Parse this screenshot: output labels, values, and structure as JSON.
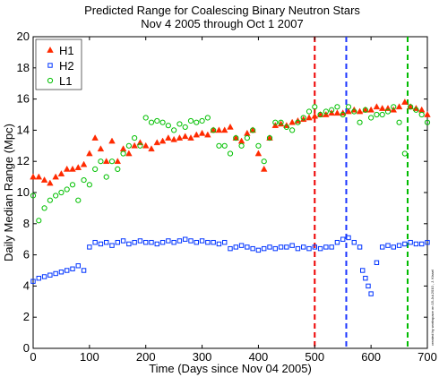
{
  "chart_data": {
    "type": "scatter",
    "title": "Predicted Range for Coalescing Binary Neutron Stars",
    "subtitle": "Nov 4 2005 through Oct 1 2007",
    "xlabel": "Time (Days since Nov 04 2005)",
    "ylabel": "Daily Median Range (Mpc)",
    "xlim": [
      0,
      700
    ],
    "ylim": [
      0,
      20
    ],
    "xticks": [
      0,
      100,
      200,
      300,
      400,
      500,
      600,
      700
    ],
    "yticks": [
      0,
      2,
      4,
      6,
      8,
      10,
      12,
      14,
      16,
      18,
      20
    ],
    "xtick_labels": [
      "0",
      "100",
      "200",
      "300",
      "400",
      "500",
      "600",
      "700"
    ],
    "ytick_labels": [
      "0",
      "2",
      "4",
      "6",
      "8",
      "10",
      "12",
      "14",
      "16",
      "18",
      "20"
    ],
    "grid": false,
    "legend_position": "top-left",
    "credit": "created by workspace on 15-Jul-2010 , J. Kissel",
    "series": [
      {
        "name": "H1",
        "marker": "triangle",
        "color": "#ff2a00",
        "x": [
          0,
          10,
          20,
          30,
          40,
          50,
          60,
          70,
          80,
          90,
          100,
          110,
          120,
          130,
          140,
          150,
          160,
          170,
          180,
          190,
          200,
          210,
          220,
          230,
          240,
          250,
          260,
          270,
          280,
          290,
          300,
          310,
          320,
          330,
          340,
          350,
          360,
          370,
          380,
          390,
          400,
          410,
          420,
          430,
          440,
          450,
          460,
          470,
          480,
          490,
          500,
          510,
          520,
          530,
          540,
          550,
          560,
          570,
          580,
          590,
          600,
          610,
          620,
          630,
          640,
          650,
          660,
          670,
          680,
          690,
          700
        ],
        "y": [
          11,
          11,
          10.8,
          10.6,
          11,
          11.2,
          11.5,
          11.5,
          11.6,
          11.8,
          12.5,
          13.5,
          12.8,
          12,
          13.3,
          12,
          12.8,
          12.5,
          13,
          13.2,
          13,
          12.8,
          13.2,
          13.3,
          13.5,
          13.4,
          13.5,
          13.6,
          13.5,
          13.7,
          13.8,
          13.7,
          14,
          14,
          14,
          14.2,
          13.5,
          13.3,
          13.8,
          14,
          12.5,
          11.5,
          13.5,
          14.3,
          14.4,
          14.3,
          14.5,
          14.6,
          14.7,
          14.8,
          14.9,
          15,
          15,
          15.1,
          15.1,
          15.1,
          15.2,
          15.3,
          15.2,
          15.3,
          15.3,
          15.5,
          15.4,
          15.4,
          15.3,
          15.5,
          15.8,
          15.5,
          15.4,
          15.3,
          15
        ]
      },
      {
        "name": "H2",
        "marker": "square",
        "color": "#0033ff",
        "x": [
          0,
          10,
          20,
          30,
          40,
          50,
          60,
          70,
          80,
          90,
          100,
          110,
          120,
          130,
          140,
          150,
          160,
          170,
          180,
          190,
          200,
          210,
          220,
          230,
          240,
          250,
          260,
          270,
          280,
          290,
          300,
          310,
          320,
          330,
          340,
          350,
          360,
          370,
          380,
          390,
          400,
          410,
          420,
          430,
          440,
          450,
          460,
          470,
          480,
          490,
          500,
          510,
          520,
          530,
          540,
          550,
          560,
          570,
          580,
          585,
          590,
          595,
          600,
          610,
          620,
          630,
          640,
          650,
          660,
          670,
          680,
          690,
          700
        ],
        "y": [
          4.3,
          4.5,
          4.6,
          4.7,
          4.8,
          4.9,
          5,
          5.1,
          5.3,
          5,
          6.5,
          6.8,
          6.7,
          6.8,
          6.6,
          6.8,
          6.9,
          6.7,
          6.8,
          6.9,
          6.8,
          6.8,
          6.7,
          6.8,
          6.9,
          6.8,
          6.9,
          7,
          6.9,
          6.8,
          6.9,
          6.8,
          6.8,
          6.7,
          6.8,
          6.4,
          6.5,
          6.6,
          6.5,
          6.4,
          6.3,
          6.4,
          6.5,
          6.4,
          6.5,
          6.5,
          6.6,
          6.4,
          6.5,
          6.4,
          6.5,
          6.4,
          6.5,
          6.5,
          6.8,
          7,
          7.1,
          6.8,
          6.5,
          5,
          4.5,
          4,
          3.5,
          5.5,
          6.5,
          6.6,
          6.5,
          6.6,
          6.7,
          6.8,
          6.7,
          6.7,
          6.8
        ]
      },
      {
        "name": "L1",
        "marker": "circle",
        "color": "#00c000",
        "x": [
          0,
          10,
          20,
          30,
          40,
          50,
          60,
          70,
          80,
          90,
          100,
          110,
          120,
          130,
          140,
          150,
          160,
          170,
          180,
          190,
          200,
          210,
          220,
          230,
          240,
          250,
          260,
          270,
          280,
          290,
          300,
          310,
          320,
          330,
          340,
          350,
          360,
          370,
          380,
          390,
          400,
          410,
          420,
          430,
          440,
          450,
          460,
          470,
          480,
          490,
          500,
          510,
          520,
          530,
          540,
          550,
          560,
          570,
          580,
          590,
          600,
          610,
          620,
          630,
          640,
          650,
          660,
          670,
          680,
          690,
          700
        ],
        "y": [
          9.8,
          8.2,
          9,
          9.5,
          9.8,
          10,
          10.2,
          10.5,
          9.5,
          10.8,
          10.5,
          11.5,
          12,
          11,
          12,
          11.5,
          12.5,
          13,
          13.5,
          13,
          14.8,
          14.5,
          14.6,
          14.5,
          14.3,
          14,
          14.4,
          14.2,
          14.6,
          14.5,
          14.6,
          14.8,
          14,
          13,
          13,
          12.5,
          13.5,
          13,
          13.5,
          14,
          13,
          12,
          13.5,
          14.5,
          14.5,
          14.2,
          14,
          14.5,
          14.8,
          15.2,
          15.5,
          15,
          15.2,
          15.3,
          15.5,
          15,
          15.5,
          15.2,
          14.5,
          15.3,
          14.8,
          15,
          15,
          15.2,
          15.5,
          14.5,
          12.5,
          15.5,
          15.3,
          15,
          14.5
        ]
      }
    ],
    "vertical_lines": [
      {
        "x": 500,
        "color": "#ee0000",
        "style": "dashed"
      },
      {
        "x": 556,
        "color": "#1a33ff",
        "style": "dashed"
      },
      {
        "x": 665,
        "color": "#00bb00",
        "style": "dashed"
      }
    ]
  }
}
